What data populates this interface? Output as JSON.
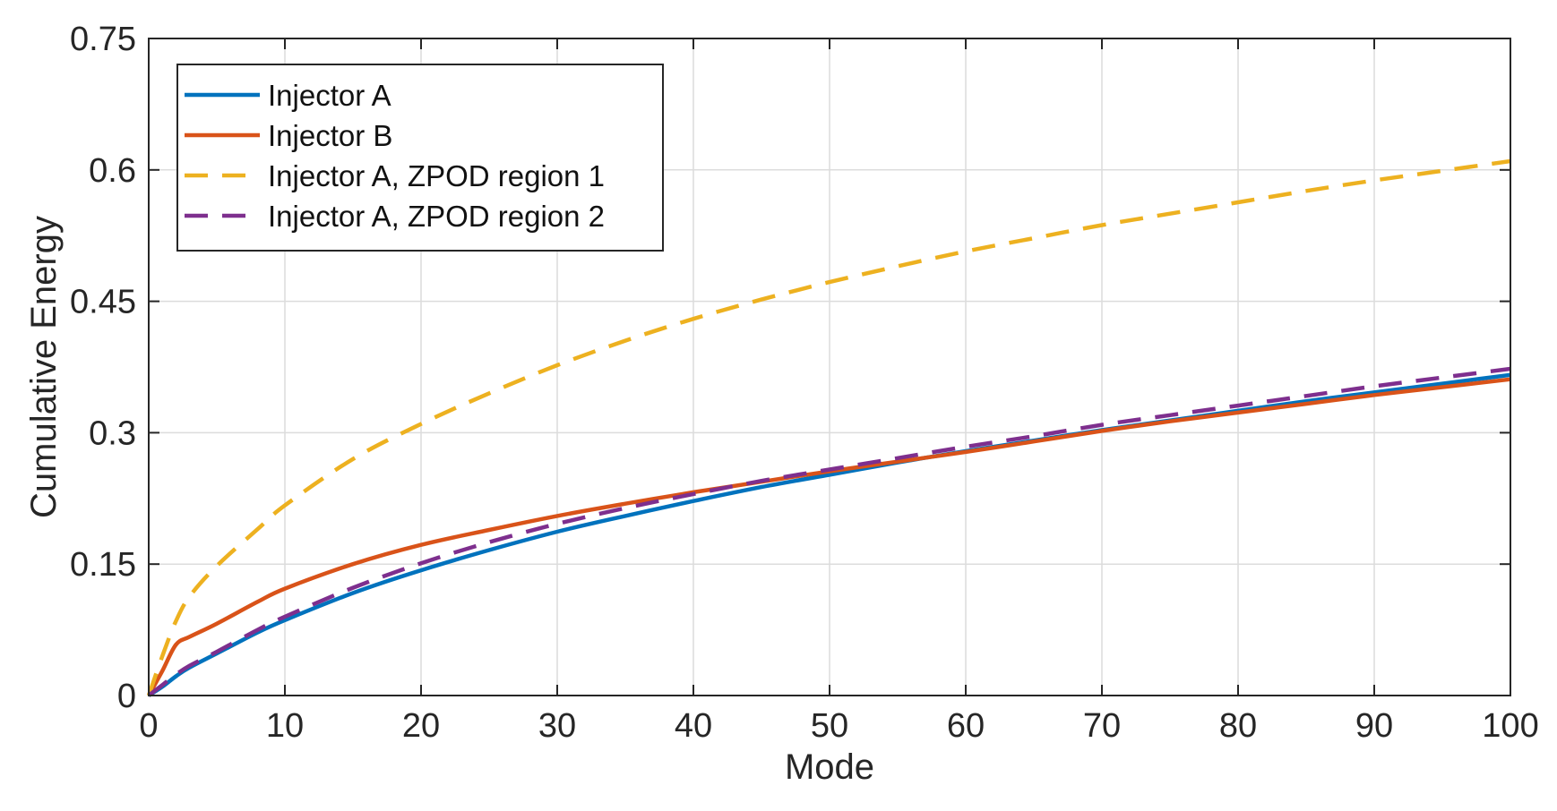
{
  "chart_data": {
    "type": "line",
    "title": "",
    "xlabel": "Mode",
    "ylabel": "Cumulative Energy",
    "xlim": [
      0,
      100
    ],
    "ylim": [
      0,
      0.75
    ],
    "grid": true,
    "legend_position": "top-left",
    "x_ticks": [
      0,
      10,
      20,
      30,
      40,
      50,
      60,
      70,
      80,
      90,
      100
    ],
    "x_tick_labels": [
      "0",
      "10",
      "20",
      "30",
      "40",
      "50",
      "60",
      "70",
      "80",
      "90",
      "100"
    ],
    "y_ticks": [
      0,
      0.15,
      0.3,
      0.45,
      0.6,
      0.75
    ],
    "y_tick_labels": [
      "0",
      "0.15",
      "0.3",
      "0.45",
      "0.6",
      "0.75"
    ],
    "x": [
      0,
      1,
      2,
      3,
      5,
      8,
      10,
      15,
      20,
      25,
      30,
      35,
      40,
      45,
      50,
      55,
      60,
      65,
      70,
      75,
      80,
      85,
      90,
      95,
      100
    ],
    "series": [
      {
        "name": "Injector A",
        "color": "#0072BD",
        "style": "solid",
        "values": [
          0,
          0.01,
          0.022,
          0.032,
          0.048,
          0.072,
          0.086,
          0.117,
          0.143,
          0.166,
          0.187,
          0.205,
          0.222,
          0.238,
          0.252,
          0.266,
          0.279,
          0.291,
          0.303,
          0.314,
          0.325,
          0.336,
          0.346,
          0.356,
          0.366
        ]
      },
      {
        "name": "Injector B",
        "color": "#D95319",
        "style": "solid",
        "values": [
          0,
          0.028,
          0.058,
          0.067,
          0.082,
          0.107,
          0.122,
          0.15,
          0.172,
          0.189,
          0.205,
          0.219,
          0.232,
          0.244,
          0.256,
          0.267,
          0.278,
          0.29,
          0.302,
          0.313,
          0.323,
          0.333,
          0.343,
          0.352,
          0.361
        ]
      },
      {
        "name": "Injector A, ZPOD region 1",
        "color": "#EDB120",
        "style": "dashed",
        "values": [
          0,
          0.045,
          0.085,
          0.113,
          0.148,
          0.19,
          0.217,
          0.27,
          0.31,
          0.345,
          0.377,
          0.405,
          0.43,
          0.452,
          0.472,
          0.49,
          0.507,
          0.522,
          0.537,
          0.55,
          0.563,
          0.576,
          0.588,
          0.599,
          0.61
        ]
      },
      {
        "name": "Injector A, ZPOD region 2",
        "color": "#7E2F8E",
        "style": "dashed",
        "values": [
          0,
          0.012,
          0.024,
          0.034,
          0.05,
          0.075,
          0.09,
          0.123,
          0.151,
          0.175,
          0.196,
          0.214,
          0.23,
          0.245,
          0.258,
          0.271,
          0.284,
          0.296,
          0.309,
          0.32,
          0.331,
          0.342,
          0.353,
          0.363,
          0.373
        ]
      }
    ]
  }
}
